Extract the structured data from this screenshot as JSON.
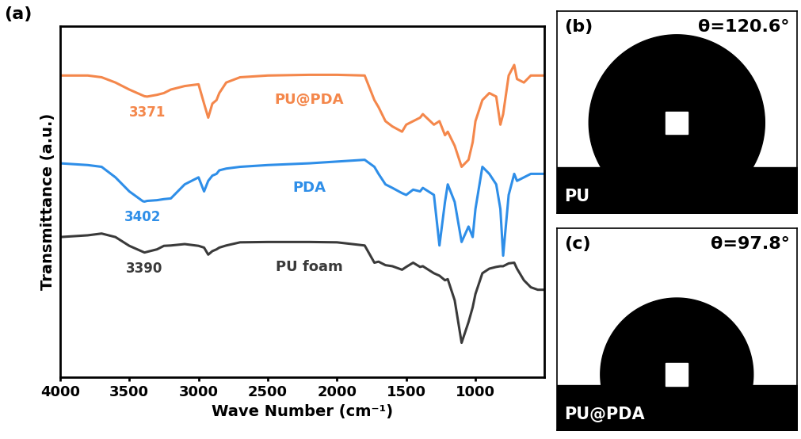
{
  "chart_data": [
    {
      "type": "line",
      "panel": "(a)",
      "x_label": "Wave Number (cm⁻¹)",
      "y_label": "Transmittance (a.u.)",
      "x": [
        4000,
        3800,
        3700,
        3600,
        3500,
        3402,
        3390,
        3371,
        3300,
        3250,
        3200,
        3100,
        3000,
        2960,
        2930,
        2900,
        2870,
        2850,
        2800,
        2700,
        2500,
        2200,
        2000,
        1800,
        1730,
        1700,
        1650,
        1600,
        1530,
        1500,
        1450,
        1400,
        1380,
        1300,
        1260,
        1220,
        1200,
        1150,
        1100,
        1050,
        1020,
        1000,
        950,
        900,
        850,
        820,
        800,
        760,
        720,
        700,
        650,
        600,
        550,
        500
      ],
      "xlim": [
        4000,
        500
      ],
      "xticks": [
        4000,
        3500,
        3000,
        2500,
        2000,
        1500,
        1000
      ],
      "ylim": [
        0,
        100
      ],
      "tick_labels": "x",
      "series": [
        {
          "name": "PU@PDA",
          "color": "#f4874b",
          "values": [
            86,
            86,
            85.5,
            84,
            82,
            80.3,
            80.1,
            80,
            80.5,
            81,
            82,
            83,
            83.5,
            78,
            74,
            78,
            79,
            81,
            84,
            85.5,
            86,
            86.2,
            86.2,
            86,
            79,
            77,
            73,
            71.5,
            70,
            72,
            73,
            74,
            75,
            72,
            73,
            69,
            70,
            66,
            60,
            62,
            67,
            73,
            79,
            81,
            80,
            72,
            75,
            86,
            89,
            85,
            84,
            86,
            86,
            86
          ]
        },
        {
          "name": "PDA",
          "color": "#2e8ee8",
          "values": [
            61,
            60.5,
            60,
            57,
            53,
            50.2,
            50.1,
            50.3,
            50.5,
            50.8,
            51,
            55,
            57,
            53,
            56,
            57.5,
            58,
            59,
            59.5,
            60,
            60.5,
            61,
            61.5,
            62,
            60,
            58,
            55,
            54,
            52.5,
            52,
            53.5,
            53,
            54,
            52,
            37.6,
            50,
            55,
            50,
            38.6,
            43,
            40,
            48,
            60,
            58,
            55,
            48,
            34.7,
            52,
            58,
            56,
            57,
            58,
            58,
            58
          ]
        },
        {
          "name": "PU foam",
          "color": "#3a3a3a",
          "values": [
            40,
            40.5,
            41,
            40,
            37.5,
            35.8,
            35.6,
            35.8,
            36.5,
            37.5,
            37.6,
            38,
            37.5,
            37,
            35,
            36,
            36.5,
            37,
            37.6,
            38.5,
            38.6,
            38.6,
            38.5,
            37.6,
            32.7,
            33,
            32,
            31.7,
            30.7,
            31.5,
            32.7,
            31.5,
            31.7,
            29.7,
            29,
            27.7,
            28,
            22,
            9.9,
            15.8,
            20,
            23.8,
            29.7,
            31,
            31.5,
            31.7,
            31.7,
            32.5,
            32.7,
            31,
            27.7,
            25.7,
            25,
            25
          ]
        }
      ],
      "annotations": [
        {
          "text": "3371",
          "x": 3371,
          "series": "PU@PDA"
        },
        {
          "text": "3402",
          "x": 3402,
          "series": "PDA"
        },
        {
          "text": "3390",
          "x": 3390,
          "series": "PU foam"
        }
      ]
    },
    {
      "type": "contact_angle",
      "panel": "(b)",
      "sample": "PU",
      "angle": 120.6,
      "label": "θ=120.6°",
      "tick_labels": false
    },
    {
      "type": "contact_angle",
      "panel": "(c)",
      "sample": "PU@PDA",
      "angle": 97.8,
      "label": "θ=97.8°",
      "tick_labels": false
    }
  ]
}
